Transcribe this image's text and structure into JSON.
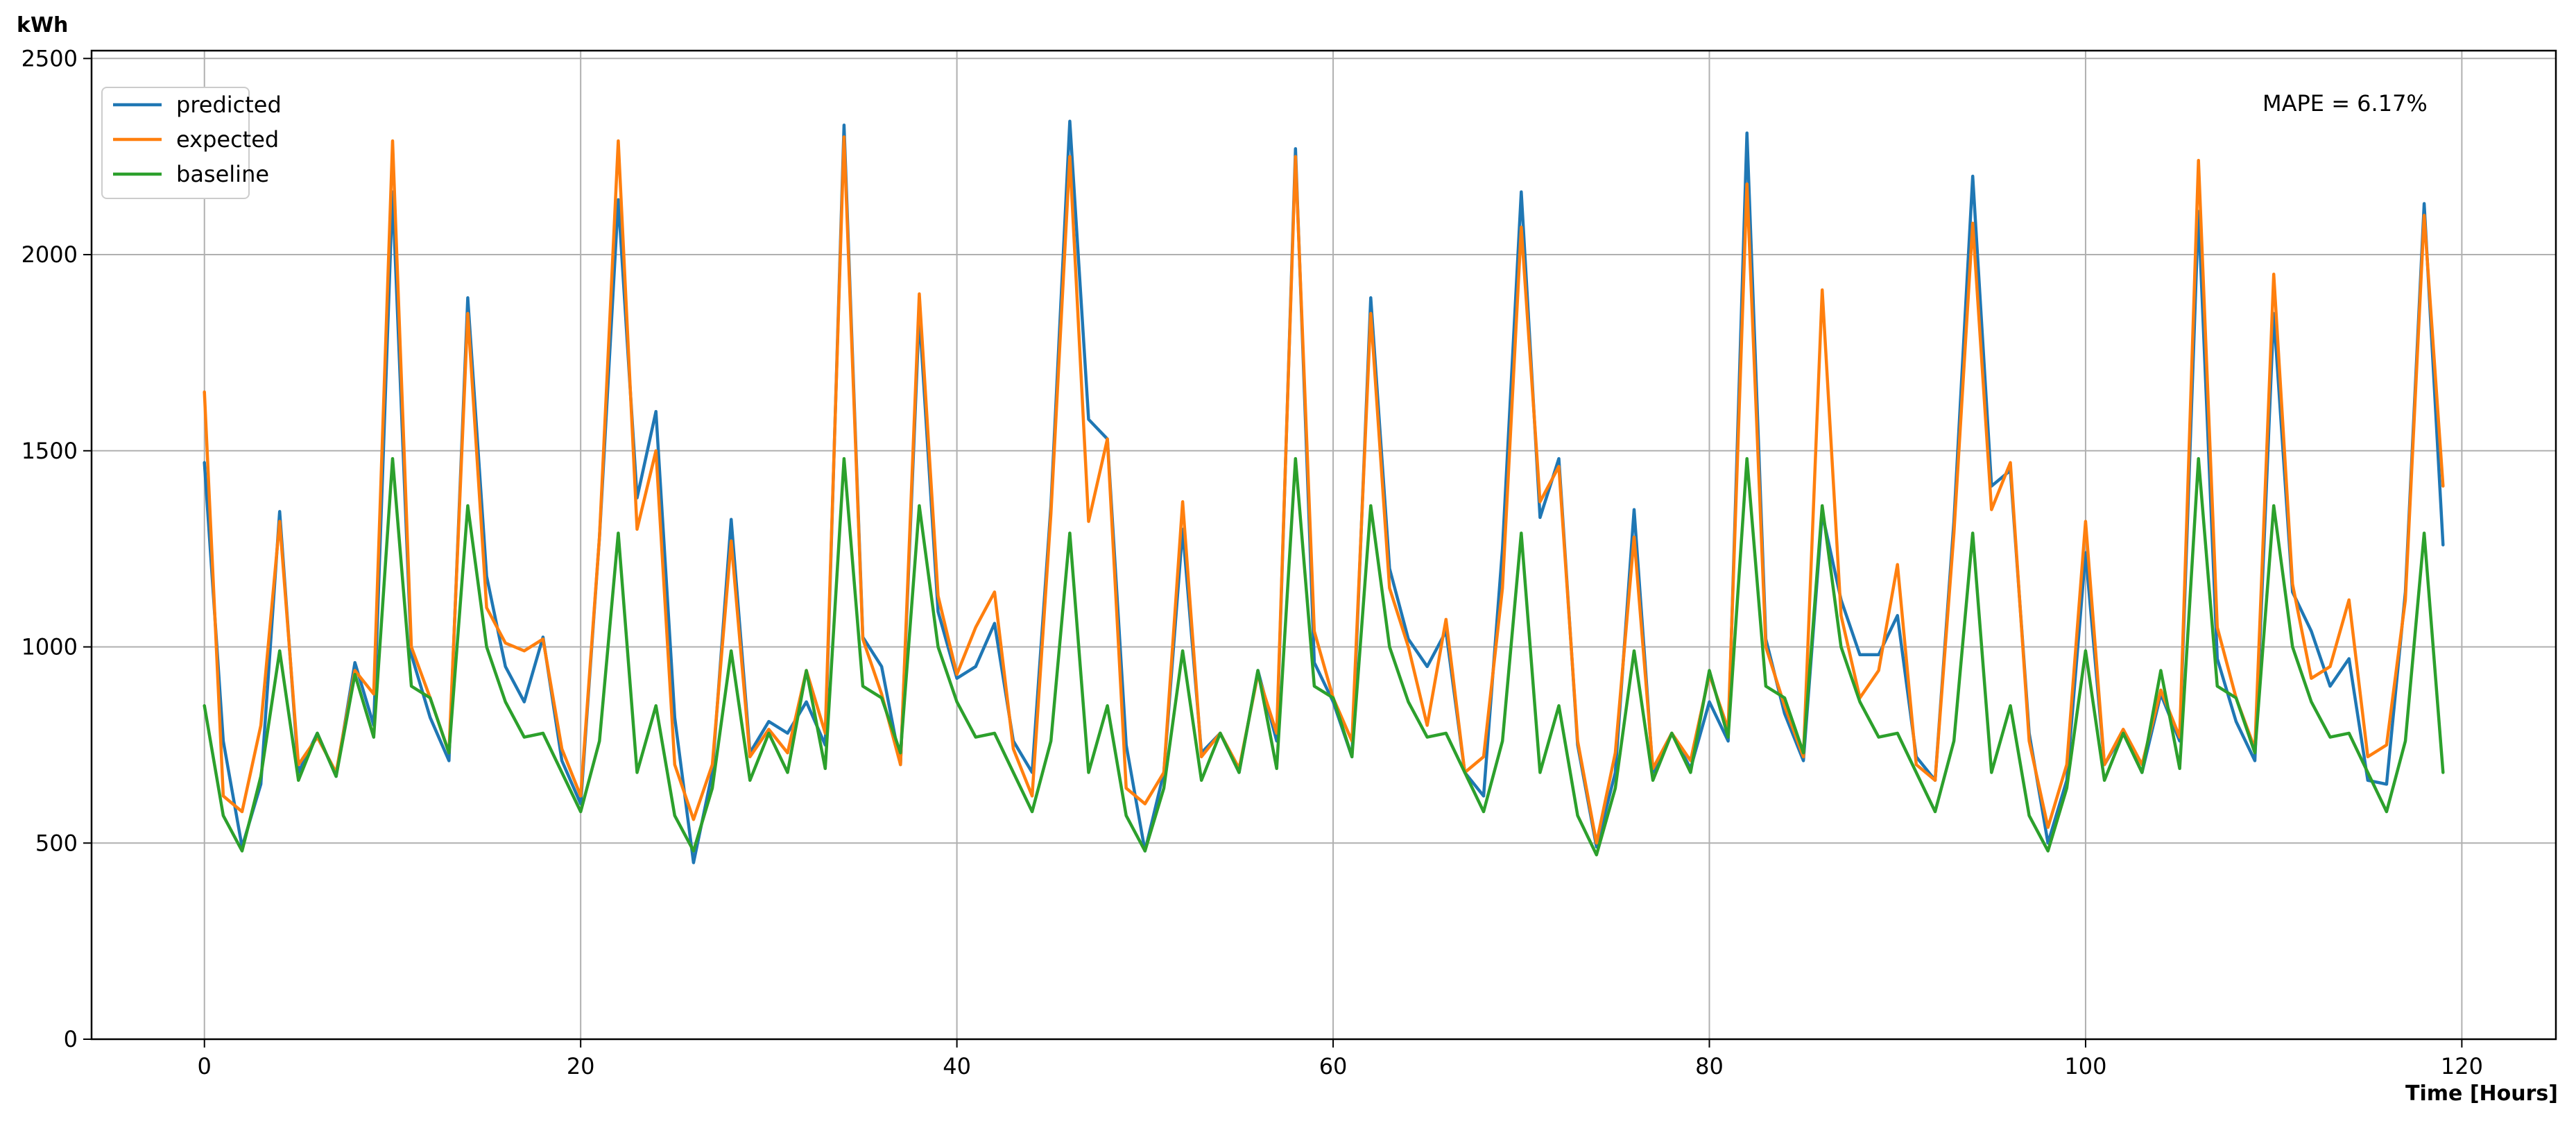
{
  "chart_data": {
    "type": "line",
    "title": "",
    "ylabel": "kWh",
    "xlabel": "Time [Hours]",
    "xlim": [
      -6,
      125
    ],
    "ylim": [
      0,
      2520
    ],
    "xticks": [
      0,
      20,
      40,
      60,
      80,
      100,
      120
    ],
    "yticks": [
      0,
      500,
      1000,
      1500,
      2000,
      2500
    ],
    "grid": true,
    "legend_position": "top-left",
    "annotation": "MAPE = 6.17%",
    "series": [
      {
        "name": "predicted",
        "color": "#1f77b4",
        "values": [
          1470,
          760,
          490,
          650,
          1345,
          680,
          780,
          670,
          960,
          800,
          2160,
          980,
          820,
          710,
          1890,
          1180,
          950,
          860,
          1025,
          710,
          600,
          1280,
          2140,
          1380,
          1600,
          820,
          450,
          680,
          1325,
          730,
          810,
          780,
          860,
          750,
          2330,
          1025,
          950,
          700,
          1850,
          1090,
          920,
          950,
          1060,
          760,
          680,
          1360,
          2340,
          1580,
          1530,
          750,
          480,
          680,
          1300,
          730,
          780,
          680,
          940,
          760,
          2270,
          960,
          860,
          720,
          1890,
          1200,
          1020,
          950,
          1040,
          680,
          620,
          1250,
          2160,
          1330,
          1480,
          750,
          490,
          680,
          1350,
          680,
          780,
          690,
          860,
          760,
          2310,
          1020,
          830,
          710,
          1340,
          1120,
          980,
          980,
          1080,
          720,
          660,
          1320,
          2200,
          1410,
          1450,
          780,
          500,
          660,
          1240,
          700,
          780,
          680,
          880,
          760,
          2110,
          970,
          810,
          710,
          1850,
          1140,
          1040,
          900,
          970,
          660,
          650,
          1140,
          2130,
          1260
        ]
      },
      {
        "name": "expected",
        "color": "#ff7f0e",
        "values": [
          1650,
          620,
          580,
          800,
          1320,
          700,
          770,
          680,
          940,
          880,
          2290,
          1000,
          870,
          730,
          1850,
          1100,
          1010,
          990,
          1020,
          740,
          620,
          1280,
          2290,
          1300,
          1500,
          700,
          560,
          700,
          1270,
          720,
          790,
          730,
          940,
          780,
          2300,
          1020,
          880,
          700,
          1900,
          1130,
          930,
          1050,
          1140,
          740,
          620,
          1340,
          2250,
          1320,
          1530,
          640,
          600,
          680,
          1370,
          720,
          780,
          690,
          930,
          780,
          2250,
          1040,
          870,
          760,
          1850,
          1150,
          1000,
          800,
          1070,
          680,
          720,
          1150,
          2070,
          1370,
          1460,
          760,
          500,
          730,
          1280,
          690,
          780,
          710,
          930,
          790,
          2180,
          1000,
          850,
          720,
          1910,
          1080,
          870,
          940,
          1210,
          700,
          660,
          1290,
          2080,
          1350,
          1470,
          760,
          540,
          700,
          1320,
          700,
          790,
          700,
          890,
          770,
          2240,
          1050,
          870,
          740,
          1950,
          1160,
          920,
          950,
          1120,
          720,
          750,
          1120,
          2100,
          1410
        ]
      },
      {
        "name": "baseline",
        "color": "#2ca02c",
        "values": [
          850,
          570,
          480,
          670,
          990,
          660,
          780,
          670,
          930,
          770,
          1480,
          900,
          870,
          730,
          1360,
          1000,
          860,
          770,
          780,
          680,
          580,
          760,
          1290,
          680,
          850,
          570,
          480,
          640,
          990,
          660,
          780,
          680,
          940,
          690,
          1480,
          900,
          870,
          730,
          1360,
          1000,
          860,
          770,
          780,
          680,
          580,
          760,
          1290,
          680,
          850,
          570,
          480,
          640,
          990,
          660,
          780,
          680,
          940,
          690,
          1480,
          900,
          870,
          720,
          1360,
          1000,
          860,
          770,
          780,
          680,
          580,
          760,
          1290,
          680,
          850,
          570,
          470,
          640,
          990,
          660,
          780,
          680,
          940,
          770,
          1480,
          900,
          870,
          730,
          1360,
          1000,
          860,
          770,
          780,
          680,
          580,
          760,
          1290,
          680,
          850,
          570,
          480,
          640,
          990,
          660,
          780,
          680,
          940,
          690,
          1480,
          900,
          870,
          730,
          1360,
          1000,
          860,
          770,
          780,
          680,
          580,
          760,
          1290,
          680
        ]
      }
    ]
  }
}
